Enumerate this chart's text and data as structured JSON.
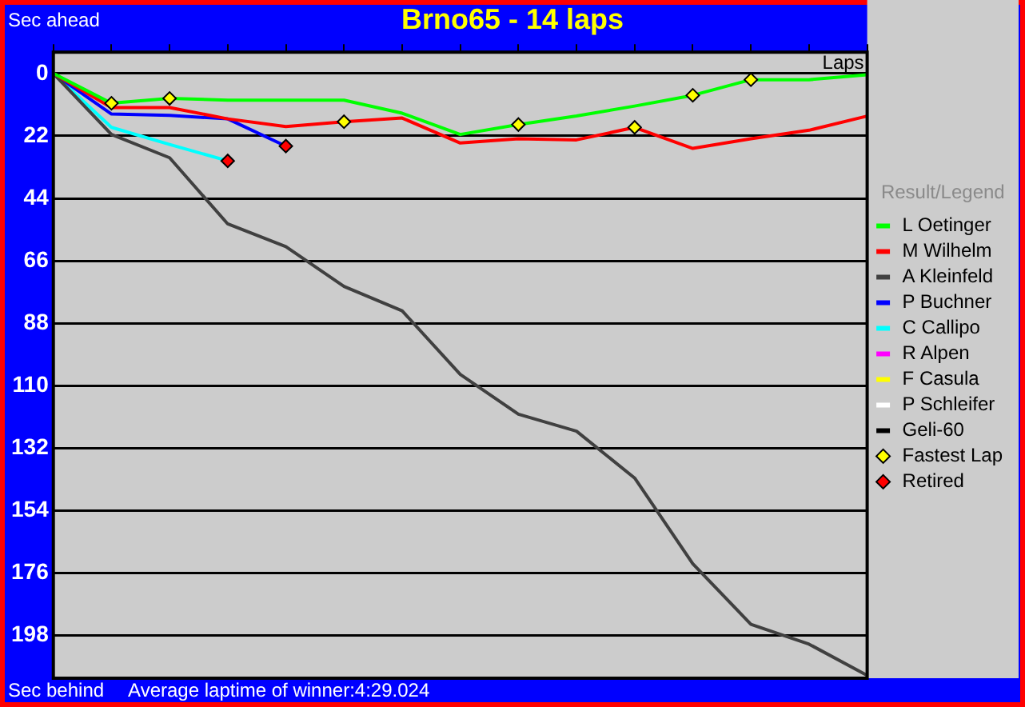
{
  "chart_data": {
    "type": "line",
    "title": "Brno65 - 14 laps",
    "ylabel": "Sec ahead",
    "xlabel": "Laps",
    "legend_title": "Result/Legend",
    "annotations": [
      "Sec behind",
      "Average laptime of winner:4:29.024"
    ],
    "categories": [
      null,
      null,
      null,
      null,
      null,
      null,
      null,
      null,
      null,
      null,
      null,
      null,
      null,
      null,
      null
    ],
    "ylim": [
      213,
      -7.5
    ],
    "yticks": [
      0,
      22,
      44,
      66,
      88,
      110,
      132,
      154,
      176,
      198
    ],
    "tick_labels": "y",
    "grid": "y",
    "legend": "right",
    "marker": "none",
    "line_style": "solid",
    "series": [
      {
        "name": "L Oetinger",
        "color": "#00ff00",
        "values": [
          0,
          10.5,
          8.8,
          9.4,
          9.4,
          9.4,
          14,
          21.5,
          18,
          15,
          11.5,
          7.7,
          2.2,
          2.2,
          0.5
        ]
      },
      {
        "name": "M Wilhelm",
        "color": "#ff0000",
        "values": [
          0,
          12,
          12,
          16,
          18.7,
          17,
          15.7,
          24.5,
          23,
          23.4,
          19,
          26.4,
          23,
          20,
          15
        ]
      },
      {
        "name": "A Kleinfeld",
        "color": "#404040",
        "values": [
          0,
          21.5,
          29.7,
          53,
          61,
          75,
          83.6,
          106,
          120,
          126,
          142.5,
          172.7,
          194,
          201,
          212
        ]
      },
      {
        "name": "P Buchner",
        "color": "#0000ff",
        "values": [
          0,
          14.3,
          14.8,
          16,
          25.6,
          null,
          null,
          null,
          null,
          null,
          null,
          null,
          null,
          null,
          null
        ]
      },
      {
        "name": "C Callipo",
        "color": "#00ffff",
        "values": [
          0,
          19,
          25,
          30.8,
          null,
          null,
          null,
          null,
          null,
          null,
          null,
          null,
          null,
          null,
          null
        ]
      },
      {
        "name": "R Alpen",
        "color": "#ff00ff",
        "values": [
          null,
          null,
          null,
          null,
          null,
          null,
          null,
          null,
          null,
          null,
          null,
          null,
          null,
          null,
          null
        ]
      },
      {
        "name": "F Casula",
        "color": "#ffff00",
        "values": [
          null,
          null,
          null,
          null,
          null,
          null,
          null,
          null,
          null,
          null,
          null,
          null,
          null,
          null,
          null
        ]
      },
      {
        "name": "P Schleifer",
        "color": "#ffffff",
        "values": [
          null,
          null,
          null,
          null,
          null,
          null,
          null,
          null,
          null,
          null,
          null,
          null,
          null,
          null,
          null
        ]
      },
      {
        "name": "Geli-60",
        "color": "#000000",
        "values": [
          null,
          null,
          null,
          null,
          null,
          null,
          null,
          null,
          null,
          null,
          null,
          null,
          null,
          null,
          null
        ]
      },
      {
        "name": "Fastest Lap",
        "type": "scatter",
        "marker": "diamond",
        "color": "#ffff00",
        "values": [
          null,
          10.5,
          8.8,
          null,
          null,
          17,
          null,
          null,
          18,
          null,
          19,
          7.7,
          2.2,
          null,
          null
        ]
      },
      {
        "name": "Retired",
        "type": "scatter",
        "marker": "diamond",
        "color": "#ff0000",
        "values": [
          null,
          null,
          null,
          30.8,
          25.6,
          null,
          null,
          null,
          null,
          null,
          null,
          null,
          null,
          null,
          null
        ]
      }
    ]
  }
}
